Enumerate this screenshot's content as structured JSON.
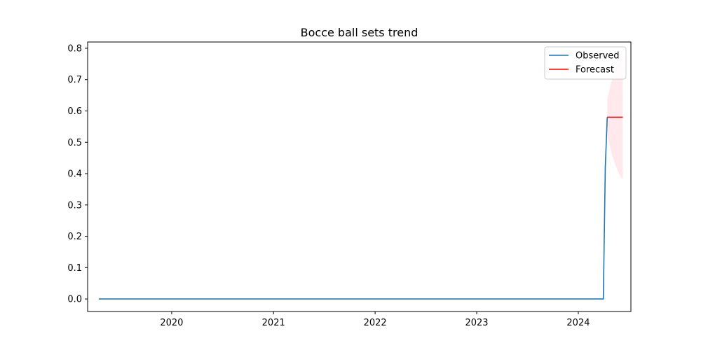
{
  "chart_data": {
    "type": "line",
    "title": "Bocce ball sets trend",
    "xlabel": "",
    "ylabel": "",
    "xlim": [
      "2019-03-05",
      "2024-07-08"
    ],
    "ylim": [
      -0.04,
      0.82
    ],
    "x_ticks": [
      "2020",
      "2021",
      "2022",
      "2023",
      "2024"
    ],
    "y_ticks": [
      "0.0",
      "0.1",
      "0.2",
      "0.3",
      "0.4",
      "0.5",
      "0.6",
      "0.7",
      "0.8"
    ],
    "grid": false,
    "legend_position": "top-right",
    "series": [
      {
        "name": "Observed",
        "color": "#1f77b4",
        "points": [
          {
            "x": "2019-04-14",
            "y": 0.0
          },
          {
            "x": "2024-03-31",
            "y": 0.0
          },
          {
            "x": "2024-04-07",
            "y": 0.42
          },
          {
            "x": "2024-04-14",
            "y": 0.58
          }
        ]
      },
      {
        "name": "Forecast",
        "color": "#ff0000",
        "points": [
          {
            "x": "2024-04-14",
            "y": 0.58
          },
          {
            "x": "2024-06-09",
            "y": 0.58
          }
        ]
      }
    ],
    "confidence_band": {
      "color": "#ffc0cb",
      "points": [
        {
          "x": "2024-04-14",
          "lower": 0.52,
          "upper": 0.64
        },
        {
          "x": "2024-04-28",
          "lower": 0.47,
          "upper": 0.69
        },
        {
          "x": "2024-05-12",
          "lower": 0.43,
          "upper": 0.73
        },
        {
          "x": "2024-05-26",
          "lower": 0.4,
          "upper": 0.76
        },
        {
          "x": "2024-06-09",
          "lower": 0.38,
          "upper": 0.78
        }
      ]
    }
  }
}
